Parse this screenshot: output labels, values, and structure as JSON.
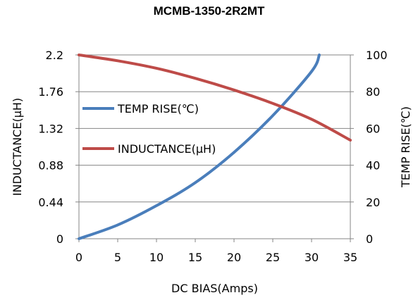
{
  "chart_data": {
    "type": "line",
    "title": "MCMB-1350-2R2MT",
    "xlabel": "DC  BIAS(Amps)",
    "ylabel_left": "INDUCTANCE(μH)",
    "ylabel_right": "TEMP RISE(℃)",
    "xlim": [
      0,
      35
    ],
    "ylim_left": [
      0,
      2.2
    ],
    "ylim_right": [
      0,
      100
    ],
    "x_ticks": [
      "0",
      "5",
      "10",
      "15",
      "20",
      "25",
      "30",
      "35"
    ],
    "y_left_ticks": [
      "0",
      "0.44",
      "0.88",
      "1.32",
      "1.76",
      "2.2"
    ],
    "y_right_ticks": [
      "0",
      "20",
      "40",
      "60",
      "80",
      "100"
    ],
    "grid": "horizontal",
    "legend_position": "center-left",
    "series": [
      {
        "name": "TEMP RISE(℃)",
        "axis": "right",
        "color": "#4a7ebb",
        "x": [
          0,
          5,
          10,
          15,
          20,
          25,
          30,
          31
        ],
        "y": [
          0,
          7.5,
          18,
          30.5,
          47,
          67,
          91,
          100
        ]
      },
      {
        "name": "INDUCTANCE(μH)",
        "axis": "left",
        "color": "#be4b48",
        "x": [
          0,
          5,
          10,
          15,
          20,
          25,
          30,
          35
        ],
        "y": [
          2.2,
          2.13,
          2.04,
          1.92,
          1.78,
          1.62,
          1.43,
          1.18
        ]
      }
    ]
  }
}
